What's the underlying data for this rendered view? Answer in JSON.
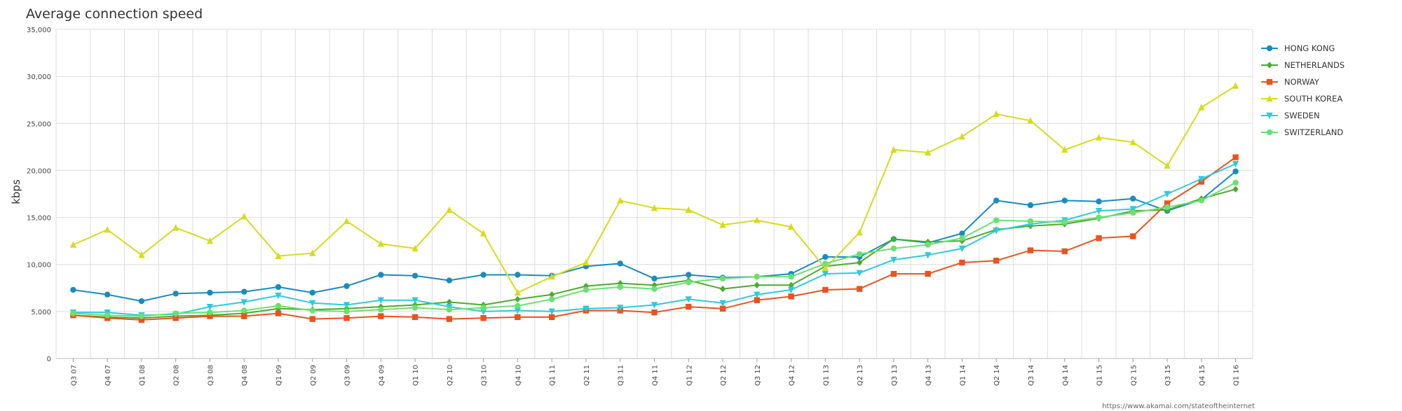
{
  "chart_data": {
    "type": "line",
    "title": "Average connection speed",
    "ylabel": "kbps",
    "xlabel": "",
    "ylim": [
      0,
      35000
    ],
    "yticks": [
      0,
      5000,
      10000,
      15000,
      20000,
      25000,
      30000,
      35000
    ],
    "ytick_labels": [
      "0",
      "5,000",
      "10,000",
      "15,000",
      "20,000",
      "25,000",
      "30,000",
      "35,000"
    ],
    "grid": true,
    "legend_position": "right",
    "source": "https://www.akamai.com/stateoftheinternet",
    "categories": [
      "Q3 07",
      "Q4 07",
      "Q1 08",
      "Q2 08",
      "Q3 08",
      "Q4 08",
      "Q1 09",
      "Q2 09",
      "Q3 09",
      "Q4 09",
      "Q1 10",
      "Q2 10",
      "Q3 10",
      "Q4 10",
      "Q1 11",
      "Q2 11",
      "Q3 11",
      "Q4 11",
      "Q1 12",
      "Q2 12",
      "Q3 12",
      "Q4 12",
      "Q1 13",
      "Q2 13",
      "Q3 13",
      "Q4 13",
      "Q1 14",
      "Q2 14",
      "Q3 14",
      "Q4 14",
      "Q1 15",
      "Q2 15",
      "Q3 15",
      "Q4 15",
      "Q1 16"
    ],
    "series": [
      {
        "name": "HONG KONG",
        "color": "#1a8bbd",
        "marker": "circle",
        "values": [
          7300,
          6800,
          6100,
          6900,
          7000,
          7100,
          7600,
          7000,
          7700,
          8900,
          8800,
          8300,
          8900,
          8900,
          8800,
          9800,
          10100,
          8500,
          8900,
          8600,
          8700,
          9000,
          10800,
          10800,
          12700,
          12300,
          13300,
          16800,
          16300,
          16800,
          16700,
          17000,
          15700,
          16900,
          19900
        ]
      },
      {
        "name": "NETHERLANDS",
        "color": "#4cab2c",
        "marker": "diamond",
        "values": [
          4600,
          4400,
          4300,
          4500,
          4600,
          4800,
          5300,
          5200,
          5300,
          5500,
          5700,
          6000,
          5700,
          6300,
          6800,
          7700,
          8000,
          7800,
          8300,
          7400,
          7800,
          7800,
          9800,
          10200,
          12700,
          12400,
          12500,
          13700,
          14100,
          14300,
          14900,
          15700,
          15800,
          17000,
          18000
        ]
      },
      {
        "name": "NORWAY",
        "color": "#e8541c",
        "marker": "square",
        "values": [
          4600,
          4300,
          4100,
          4300,
          4500,
          4500,
          4800,
          4200,
          4300,
          4500,
          4400,
          4200,
          4300,
          4400,
          4400,
          5100,
          5100,
          4900,
          5500,
          5300,
          6200,
          6600,
          7300,
          7400,
          9000,
          9000,
          10200,
          10400,
          11500,
          11400,
          12800,
          13000,
          16500,
          18800,
          21400
        ]
      },
      {
        "name": "SOUTH KOREA",
        "color": "#d6dc1a",
        "marker": "triangle-up",
        "values": [
          12100,
          13700,
          11000,
          13900,
          12500,
          15100,
          10900,
          11200,
          14600,
          12200,
          11700,
          15800,
          13300,
          7000,
          8700,
          10200,
          16800,
          16000,
          15800,
          14200,
          14700,
          14000,
          9600,
          13400,
          22200,
          21900,
          23600,
          26000,
          25300,
          22200,
          23500,
          23000,
          20500,
          26700,
          29000
        ]
      },
      {
        "name": "SWEDEN",
        "color": "#2ecadc",
        "marker": "triangle-down",
        "values": [
          4900,
          4900,
          4600,
          4700,
          5500,
          6000,
          6700,
          5900,
          5700,
          6200,
          6200,
          5500,
          5000,
          5100,
          5000,
          5300,
          5400,
          5700,
          6300,
          5900,
          6800,
          7300,
          9000,
          9100,
          10500,
          11000,
          11700,
          13600,
          14300,
          14700,
          15700,
          15900,
          17500,
          19100,
          20700
        ]
      },
      {
        "name": "SWITZERLAND",
        "color": "#6be072",
        "marker": "circle",
        "values": [
          4800,
          4600,
          4500,
          4800,
          4900,
          5100,
          5600,
          5100,
          5000,
          5200,
          5400,
          5200,
          5400,
          5600,
          6300,
          7300,
          7600,
          7400,
          8100,
          8500,
          8700,
          8700,
          10100,
          11100,
          11700,
          12100,
          12800,
          14700,
          14600,
          14500,
          15000,
          15500,
          16100,
          16800,
          18700
        ]
      }
    ]
  }
}
